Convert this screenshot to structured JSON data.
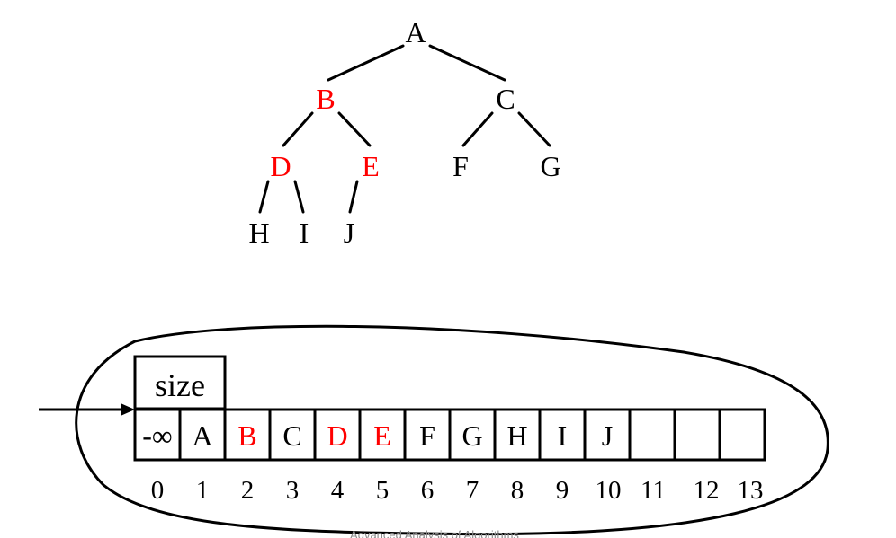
{
  "colors": {
    "normal": "#000000",
    "highlight": "#ff0000",
    "footer": "#8a8a8a"
  },
  "tree": {
    "nodes": [
      {
        "label": "A",
        "highlight": false
      },
      {
        "label": "B",
        "highlight": true
      },
      {
        "label": "C",
        "highlight": false
      },
      {
        "label": "D",
        "highlight": true
      },
      {
        "label": "E",
        "highlight": true
      },
      {
        "label": "F",
        "highlight": false
      },
      {
        "label": "G",
        "highlight": false
      },
      {
        "label": "H",
        "highlight": false
      },
      {
        "label": "I",
        "highlight": false
      },
      {
        "label": "J",
        "highlight": false
      }
    ]
  },
  "array": {
    "size_label": "size",
    "cells": [
      {
        "index": "0",
        "value": "-∞",
        "highlight": false
      },
      {
        "index": "1",
        "value": "A",
        "highlight": false
      },
      {
        "index": "2",
        "value": "B",
        "highlight": true
      },
      {
        "index": "3",
        "value": "C",
        "highlight": false
      },
      {
        "index": "4",
        "value": "D",
        "highlight": true
      },
      {
        "index": "5",
        "value": "E",
        "highlight": true
      },
      {
        "index": "6",
        "value": "F",
        "highlight": false
      },
      {
        "index": "7",
        "value": "G",
        "highlight": false
      },
      {
        "index": "8",
        "value": "H",
        "highlight": false
      },
      {
        "index": "9",
        "value": "I",
        "highlight": false
      },
      {
        "index": "10",
        "value": "J",
        "highlight": false
      },
      {
        "index": "11",
        "value": "",
        "highlight": false
      },
      {
        "index": "12",
        "value": "",
        "highlight": false
      },
      {
        "index": "13",
        "value": "",
        "highlight": false
      }
    ]
  },
  "footer": {
    "text": "Advanced Analysis of Algorithms"
  }
}
